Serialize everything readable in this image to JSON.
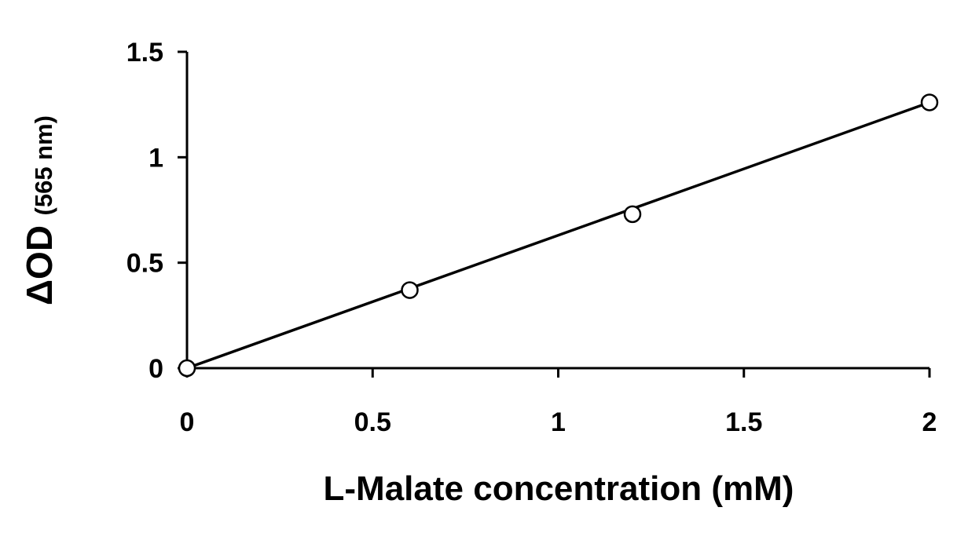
{
  "chart_data": {
    "type": "scatter",
    "xlabel": "L-Malate concentration (mM)",
    "ylabel_main": "ΔOD",
    "ylabel_sub": "(565 nm)",
    "xlim": [
      0,
      2
    ],
    "ylim": [
      0,
      1.5
    ],
    "xticks": [
      "0",
      "0.5",
      "1",
      "1.5",
      "2"
    ],
    "yticks": [
      "0",
      "0.5",
      "1",
      "1.5"
    ],
    "grid": false,
    "legend": "none",
    "series": [
      {
        "marker": "open-circle",
        "x": [
          0,
          0.6,
          1.2,
          2.0
        ],
        "y": [
          0,
          0.37,
          0.73,
          1.26
        ]
      }
    ],
    "trendline": {
      "type": "linear",
      "x": [
        0,
        2.0
      ],
      "y": [
        0,
        1.26
      ]
    },
    "colors": {
      "line": "#000000",
      "marker_fill": "#ffffff",
      "marker_stroke": "#000000"
    }
  }
}
